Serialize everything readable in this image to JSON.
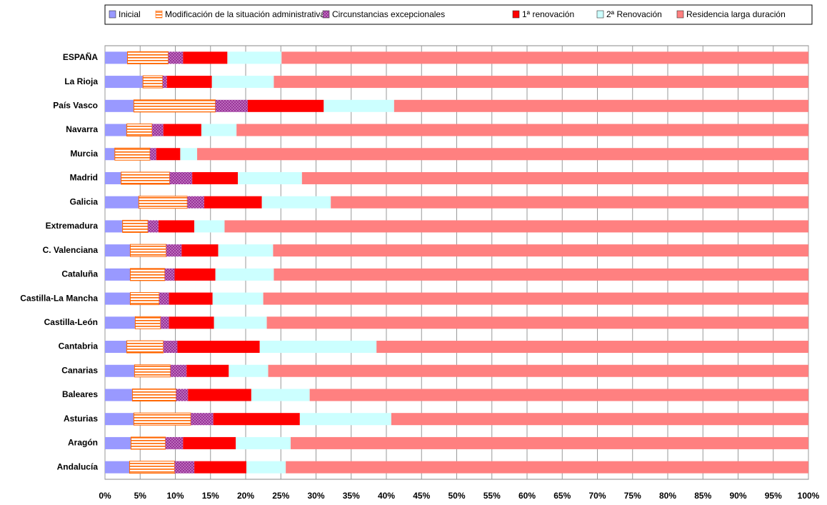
{
  "chart_data": {
    "type": "stacked-bar-horizontal",
    "categories": [
      "ESPAÑA",
      "La Rioja",
      "País Vasco",
      "Navarra",
      "Murcia",
      "Madrid",
      "Galicia",
      "Extremadura",
      "C. Valenciana",
      "Cataluña",
      "Castilla-La Mancha",
      "Castilla-León",
      "Cantabria",
      "Canarias",
      "Baleares",
      "Asturias",
      "Aragón",
      "Andalucía"
    ],
    "series": [
      {
        "name": "Inicial",
        "color": "#9999ff",
        "values": [
          3.2,
          5.4,
          4.1,
          3.1,
          1.4,
          2.3,
          4.8,
          2.5,
          3.6,
          3.6,
          3.6,
          4.3,
          3.1,
          4.2,
          3.9,
          4.1,
          3.7,
          3.5
        ]
      },
      {
        "name": "Modificación de la situación administrativa",
        "color": "#ff6600",
        "pattern": "stripes",
        "values": [
          5.8,
          2.8,
          11.6,
          3.6,
          5.0,
          6.9,
          6.9,
          3.6,
          5.1,
          4.9,
          4.1,
          3.6,
          5.2,
          5.1,
          6.2,
          8.1,
          4.9,
          6.4
        ]
      },
      {
        "name": "Circunstancias excepcionales",
        "color": "#993399",
        "pattern": "dots",
        "values": [
          2.1,
          0.6,
          4.6,
          1.6,
          0.9,
          3.2,
          2.4,
          1.5,
          2.2,
          1.4,
          1.4,
          1.2,
          2.0,
          2.3,
          1.7,
          3.2,
          2.5,
          2.8
        ]
      },
      {
        "name": "1ª renovación",
        "color": "#ff0000",
        "values": [
          6.3,
          6.4,
          10.8,
          5.4,
          3.4,
          6.5,
          8.2,
          5.1,
          5.2,
          5.8,
          6.2,
          6.4,
          11.7,
          6.0,
          9.0,
          12.3,
          7.5,
          7.4
        ]
      },
      {
        "name": "2ª Renovación",
        "color": "#ccffff",
        "values": [
          7.7,
          8.8,
          10.0,
          5.0,
          2.4,
          9.1,
          9.8,
          4.3,
          7.8,
          8.3,
          7.2,
          7.5,
          16.6,
          5.6,
          8.3,
          13.0,
          7.8,
          5.6
        ]
      },
      {
        "name": "Residencia larga duración",
        "color": "#ff8080",
        "values": [
          74.9,
          76.0,
          58.9,
          81.3,
          86.9,
          72.0,
          67.9,
          83.0,
          76.1,
          76.0,
          77.5,
          77.0,
          61.4,
          76.8,
          70.9,
          59.3,
          73.6,
          74.3
        ]
      }
    ],
    "xlim": [
      0,
      100
    ],
    "xticks": [
      {
        "value": 0,
        "label": "0%"
      },
      {
        "value": 5,
        "label": "5%"
      },
      {
        "value": 10,
        "label": "10%"
      },
      {
        "value": 15,
        "label": "15%"
      },
      {
        "value": 20,
        "label": "20%"
      },
      {
        "value": 25,
        "label": "25%"
      },
      {
        "value": 30,
        "label": "30%"
      },
      {
        "value": 35,
        "label": "35%"
      },
      {
        "value": 40,
        "label": "40%"
      },
      {
        "value": 45,
        "label": "45%"
      },
      {
        "value": 50,
        "label": "50%"
      },
      {
        "value": 55,
        "label": "55%"
      },
      {
        "value": 60,
        "label": "60%"
      },
      {
        "value": 65,
        "label": "65%"
      },
      {
        "value": 70,
        "label": "70%"
      },
      {
        "value": 75,
        "label": "75%"
      },
      {
        "value": 80,
        "label": "80%"
      },
      {
        "value": 85,
        "label": "85%"
      },
      {
        "value": 90,
        "label": "90%"
      },
      {
        "value": 95,
        "label": "95%"
      },
      {
        "value": 100,
        "label": "100%"
      }
    ],
    "grid": true,
    "legend": "top"
  }
}
